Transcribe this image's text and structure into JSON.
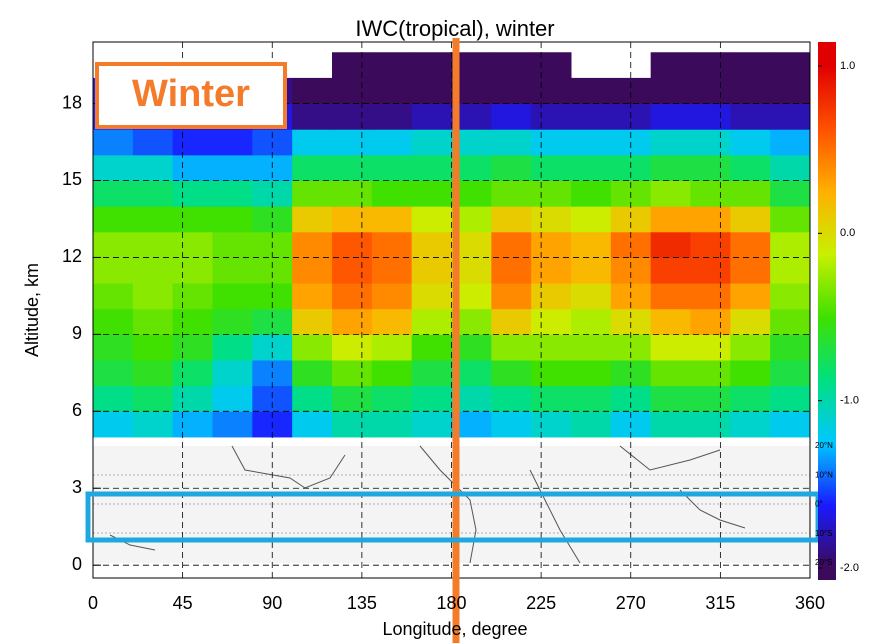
{
  "chart_data": {
    "type": "heatmap",
    "title": "IWC(tropical), winter",
    "x_label": "Longitude, degree",
    "y_label": "Altitude, km",
    "annotation": "Winter",
    "x": [
      10,
      30,
      50,
      70,
      90,
      110,
      130,
      150,
      170,
      190,
      210,
      230,
      250,
      270,
      290,
      310,
      330,
      350
    ],
    "y": [
      5.5,
      6.5,
      7.5,
      8.5,
      9.5,
      10.5,
      11.5,
      12.5,
      13.5,
      14.5,
      15.5,
      16.5,
      17.5,
      18.5,
      19.5
    ],
    "z": [
      [
        -1.2,
        -1.1,
        -1.3,
        -1.4,
        -1.6,
        -1.2,
        -1.0,
        -1.0,
        -1.1,
        -1.3,
        -1.2,
        -1.1,
        -1.0,
        -1.2,
        -1.0,
        -1.0,
        -1.1,
        -1.2
      ],
      [
        -0.9,
        -0.8,
        -1.0,
        -1.2,
        -1.5,
        -0.9,
        -0.7,
        -0.8,
        -0.9,
        -1.0,
        -0.9,
        -0.8,
        -0.8,
        -0.9,
        -0.7,
        -0.7,
        -0.8,
        -0.9
      ],
      [
        -0.7,
        -0.6,
        -0.8,
        -1.1,
        -1.4,
        -0.6,
        -0.4,
        -0.5,
        -0.7,
        -0.8,
        -0.6,
        -0.5,
        -0.5,
        -0.6,
        -0.4,
        -0.4,
        -0.5,
        -0.7
      ],
      [
        -0.6,
        -0.5,
        -0.6,
        -0.9,
        -1.1,
        -0.3,
        -0.1,
        -0.2,
        -0.5,
        -0.6,
        -0.3,
        -0.3,
        -0.3,
        -0.3,
        -0.1,
        -0.1,
        -0.3,
        -0.6
      ],
      [
        -0.5,
        -0.4,
        -0.5,
        -0.6,
        -0.7,
        0.1,
        0.3,
        0.2,
        -0.2,
        -0.3,
        0.1,
        -0.1,
        -0.2,
        0.0,
        0.2,
        0.3,
        0.0,
        -0.4
      ],
      [
        -0.4,
        -0.3,
        -0.4,
        -0.5,
        -0.5,
        0.3,
        0.5,
        0.4,
        0.0,
        -0.1,
        0.4,
        0.1,
        0.0,
        0.3,
        0.5,
        0.5,
        0.3,
        -0.3
      ],
      [
        -0.3,
        -0.3,
        -0.3,
        -0.4,
        -0.4,
        0.4,
        0.6,
        0.5,
        0.1,
        0.0,
        0.5,
        0.3,
        0.2,
        0.4,
        0.7,
        0.7,
        0.5,
        -0.2
      ],
      [
        -0.3,
        -0.3,
        -0.3,
        -0.4,
        -0.4,
        0.4,
        0.6,
        0.5,
        0.1,
        0.0,
        0.5,
        0.3,
        0.2,
        0.5,
        0.8,
        0.7,
        0.5,
        -0.2
      ],
      [
        -0.5,
        -0.5,
        -0.5,
        -0.5,
        -0.6,
        0.1,
        0.2,
        0.2,
        -0.1,
        -0.2,
        0.1,
        0.0,
        -0.1,
        0.1,
        0.3,
        0.3,
        0.1,
        -0.4
      ],
      [
        -0.8,
        -0.8,
        -0.9,
        -0.9,
        -1.0,
        -0.4,
        -0.4,
        -0.5,
        -0.5,
        -0.5,
        -0.4,
        -0.4,
        -0.5,
        -0.4,
        -0.3,
        -0.4,
        -0.4,
        -0.7
      ],
      [
        -1.1,
        -1.1,
        -1.3,
        -1.3,
        -1.3,
        -0.8,
        -0.8,
        -0.8,
        -0.8,
        -0.8,
        -0.7,
        -0.8,
        -0.8,
        -0.8,
        -0.7,
        -0.7,
        -0.8,
        -1.0
      ],
      [
        -1.4,
        -1.5,
        -1.6,
        -1.6,
        -1.5,
        -1.2,
        -1.2,
        -1.2,
        -1.1,
        -1.1,
        -1.1,
        -1.2,
        -1.2,
        -1.2,
        -1.1,
        -1.1,
        -1.2,
        -1.3
      ],
      [
        -1.6,
        -1.7,
        -1.8,
        -1.8,
        -1.7,
        -1.9,
        -1.9,
        -1.9,
        -1.8,
        -1.8,
        -1.7,
        -1.8,
        -1.8,
        -1.8,
        -1.7,
        -1.7,
        -1.8,
        -1.8
      ],
      [
        -1.6,
        -1.7,
        -1.8,
        -1.9,
        -1.9,
        -2.0,
        -2.0,
        -2.0,
        -2.0,
        -2.0,
        -2.0,
        -2.0,
        -2.0,
        -2.0,
        -2.0,
        -2.0,
        -2.0,
        -2.0
      ],
      [
        null,
        null,
        null,
        null,
        null,
        null,
        -2.0,
        -2.0,
        -2.0,
        -2.0,
        -2.0,
        -2.0,
        null,
        null,
        -2.0,
        -2.0,
        -2.0,
        -2.0
      ]
    ],
    "xlim": [
      0,
      360
    ],
    "ylim": [
      -0.5,
      20.4
    ],
    "xticks": [
      0,
      45,
      90,
      135,
      180,
      225,
      270,
      315,
      360
    ],
    "yticks": [
      0,
      3,
      6,
      9,
      12,
      15,
      18
    ],
    "grid": true,
    "clim": [
      -2,
      1
    ],
    "cticks": [
      {
        "value": 1,
        "label": "1.0"
      },
      {
        "value": 0,
        "label": "0.0"
      },
      {
        "value": -1,
        "label": "-1.0"
      },
      {
        "value": -2,
        "label": "-2.0"
      }
    ],
    "colormap": [
      "#3c0a5a",
      "#1a1aff",
      "#00c8ff",
      "#00e080",
      "#40e000",
      "#c8f000",
      "#ffb000",
      "#ff5000",
      "#e00000"
    ],
    "map_lat_labels": [
      "20°N",
      "10°N",
      "0°",
      "10°S",
      "20°S"
    ]
  }
}
